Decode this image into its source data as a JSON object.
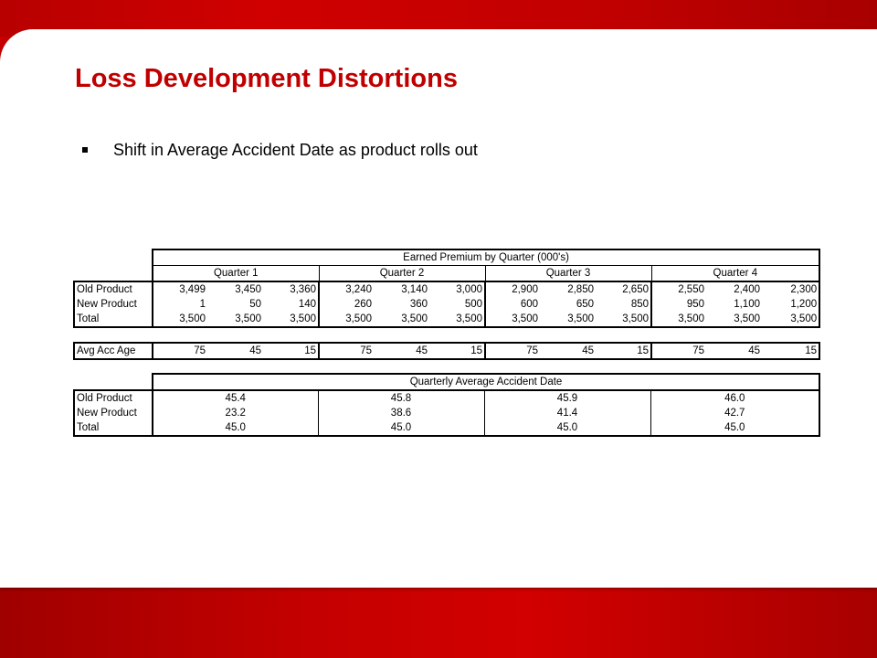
{
  "slide": {
    "title": "Loss Development Distortions",
    "bullet": "Shift in Average Accident Date as product rolls out"
  },
  "premium_table": {
    "title": "Earned Premium by Quarter (000's)",
    "quarters": [
      "Quarter 1",
      "Quarter 2",
      "Quarter 3",
      "Quarter 4"
    ],
    "rows": [
      {
        "label": "Old Product",
        "values": [
          "3,499",
          "3,450",
          "3,360",
          "3,240",
          "3,140",
          "3,000",
          "2,900",
          "2,850",
          "2,650",
          "2,550",
          "2,400",
          "2,300"
        ]
      },
      {
        "label": "New Product",
        "values": [
          "1",
          "50",
          "140",
          "260",
          "360",
          "500",
          "600",
          "650",
          "850",
          "950",
          "1,100",
          "1,200"
        ]
      },
      {
        "label": "Total",
        "values": [
          "3,500",
          "3,500",
          "3,500",
          "3,500",
          "3,500",
          "3,500",
          "3,500",
          "3,500",
          "3,500",
          "3,500",
          "3,500",
          "3,500"
        ]
      }
    ]
  },
  "age_row": {
    "label": "Avg Acc Age",
    "values": [
      "75",
      "45",
      "15",
      "75",
      "45",
      "15",
      "75",
      "45",
      "15",
      "75",
      "45",
      "15"
    ]
  },
  "date_table": {
    "title": "Quarterly Average Accident Date",
    "rows": [
      {
        "label": "Old Product",
        "values": [
          "45.4",
          "45.8",
          "45.9",
          "46.0"
        ]
      },
      {
        "label": "New Product",
        "values": [
          "23.2",
          "38.6",
          "41.4",
          "42.7"
        ]
      },
      {
        "label": "Total",
        "values": [
          "45.0",
          "45.0",
          "45.0",
          "45.0"
        ]
      }
    ]
  },
  "colors": {
    "title": "#c00000",
    "frame": "#b00000"
  }
}
